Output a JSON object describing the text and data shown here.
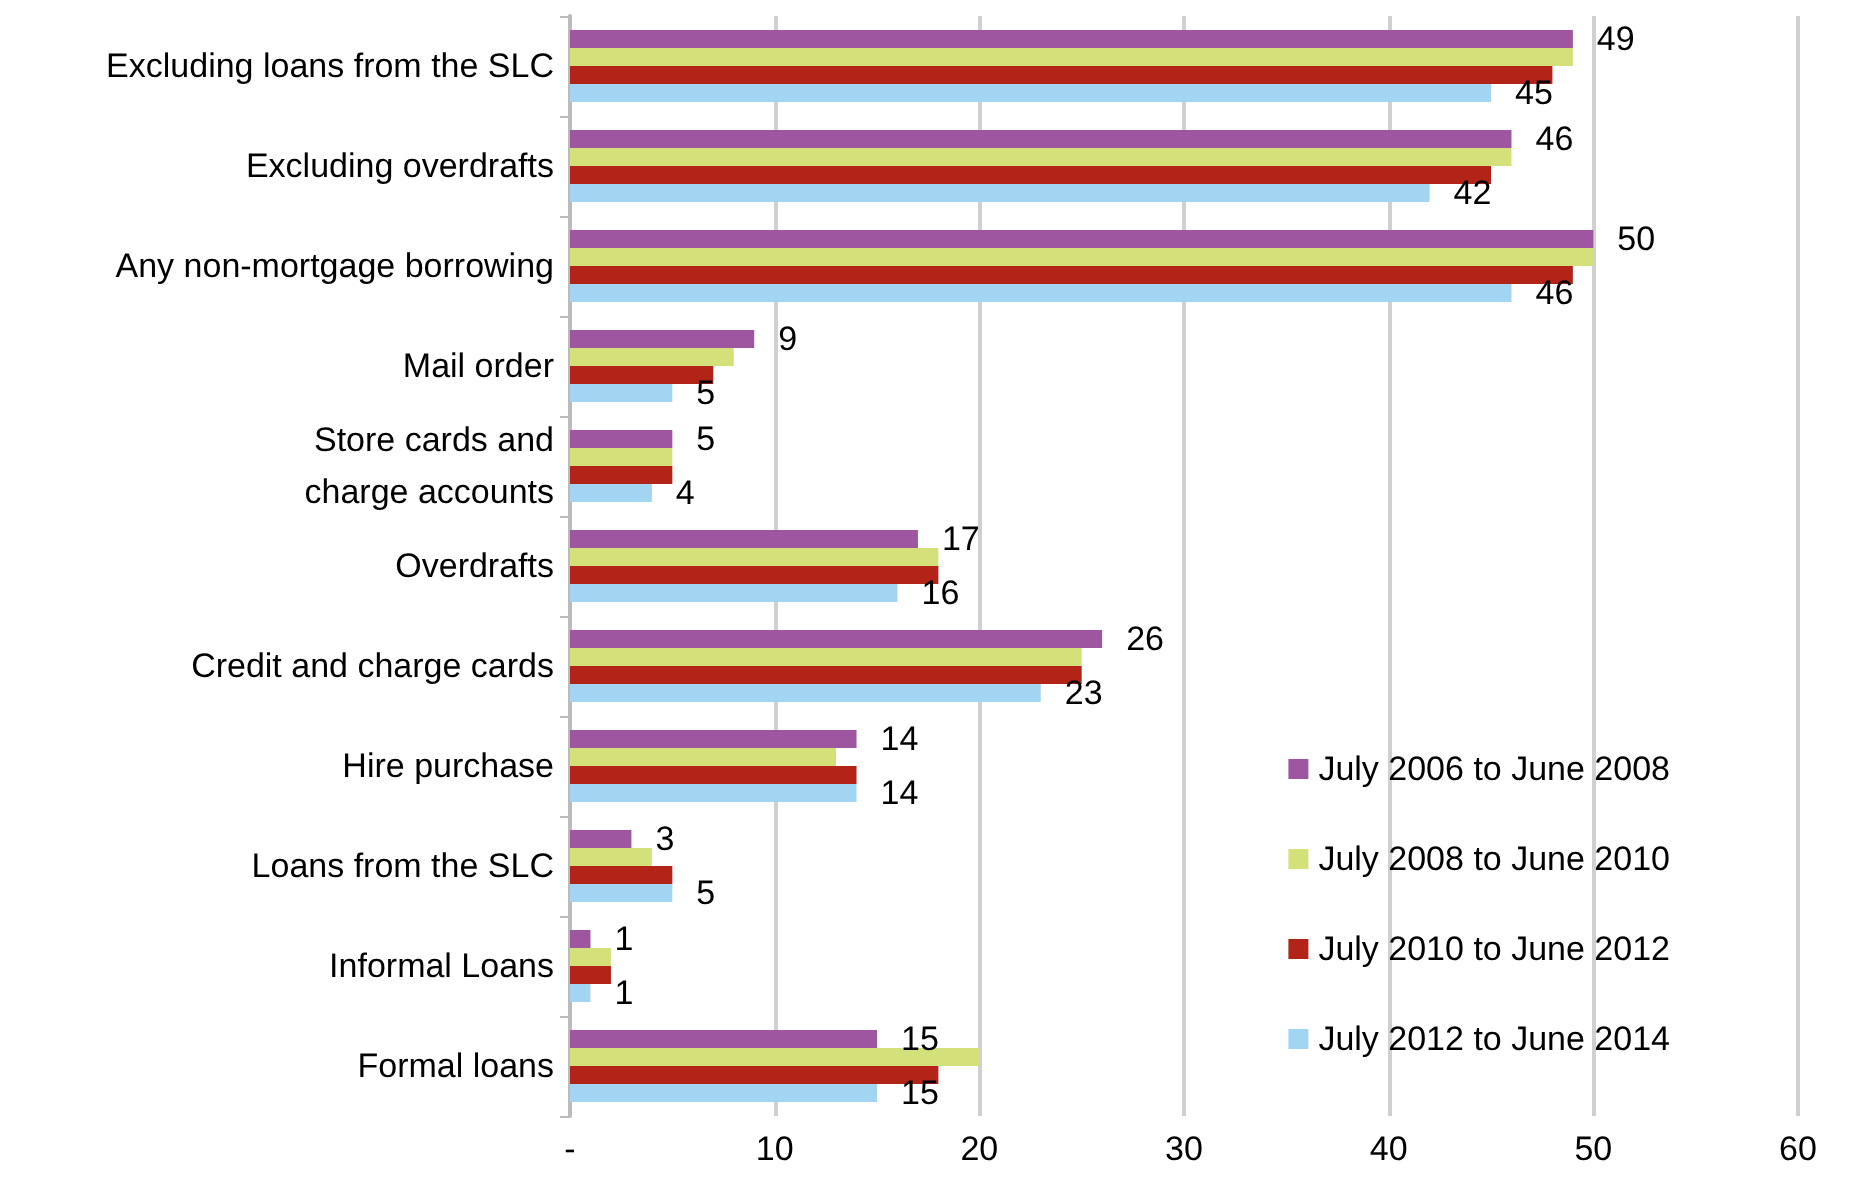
{
  "chart_data": {
    "type": "bar",
    "orientation": "horizontal",
    "categories": [
      "Excluding loans from the SLC",
      "Excluding overdrafts",
      "Any non-mortgage borrowing",
      "Mail order",
      "Store cards and\ncharge accounts",
      "Overdrafts",
      "Credit and charge cards",
      "Hire purchase",
      "Loans from the SLC",
      "Informal Loans",
      "Formal loans"
    ],
    "series": [
      {
        "name": "July 2006 to June 2008",
        "color": "#9e56a0",
        "values": [
          49,
          46,
          50,
          9,
          5,
          17,
          26,
          14,
          3,
          1,
          15
        ],
        "value_labels": [
          "49",
          "46",
          "50",
          "9",
          "5",
          "17",
          "26",
          "14",
          "3",
          "1",
          "15"
        ]
      },
      {
        "name": "July 2008 to June 2010",
        "color": "#d4e17a",
        "values": [
          49,
          46,
          50,
          8,
          5,
          18,
          25,
          13,
          4,
          2,
          20
        ]
      },
      {
        "name": "July 2010 to June 2012",
        "color": "#b22418",
        "values": [
          48,
          45,
          49,
          7,
          5,
          18,
          25,
          14,
          5,
          2,
          18
        ]
      },
      {
        "name": "July 2012 to June 2014",
        "color": "#a2d5f2",
        "values": [
          45,
          42,
          46,
          5,
          4,
          16,
          23,
          14,
          5,
          1,
          15
        ],
        "value_labels": [
          "45",
          "42",
          "46",
          "5",
          "4",
          "16",
          "23",
          "14",
          "5",
          "1",
          "15"
        ]
      }
    ],
    "xlim": [
      0,
      60
    ],
    "xticks": [
      {
        "value": 0,
        "label": "-"
      },
      10,
      20,
      30,
      40,
      50,
      60
    ],
    "grid": "x",
    "legend": "bottom right"
  }
}
